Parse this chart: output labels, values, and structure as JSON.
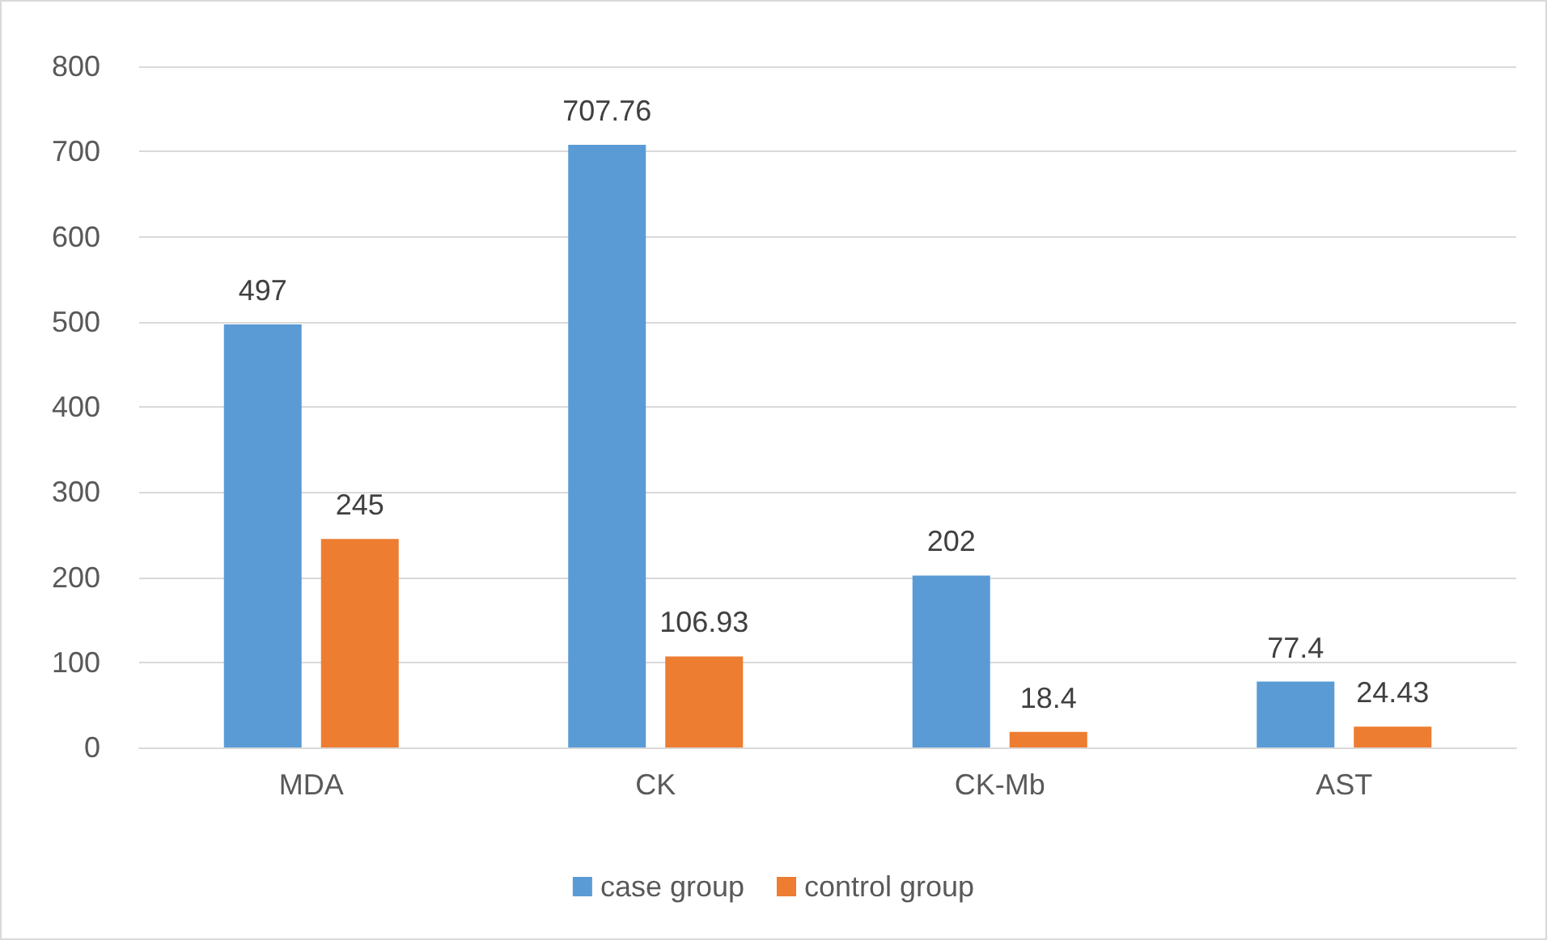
{
  "chart_data": {
    "type": "bar",
    "categories": [
      "MDA",
      "CK",
      "CK-Mb",
      "AST"
    ],
    "series": [
      {
        "name": "case group",
        "color": "#5b9bd5",
        "values": [
          497,
          707.76,
          202,
          77.4
        ]
      },
      {
        "name": "control group",
        "color": "#ed7d31",
        "values": [
          245,
          106.93,
          18.4,
          24.43
        ]
      }
    ],
    "ylim": [
      0,
      800
    ],
    "yticks": [
      0,
      100,
      200,
      300,
      400,
      500,
      600,
      700,
      800
    ],
    "grid": "y",
    "legend": "bottom",
    "data_labels": true
  }
}
